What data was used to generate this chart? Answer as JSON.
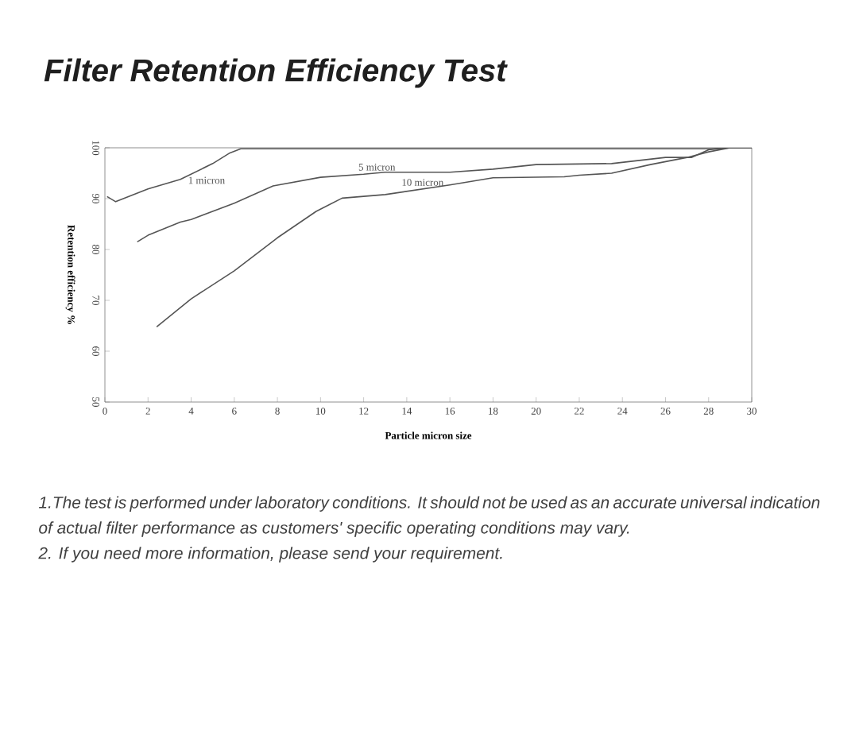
{
  "chart_data": {
    "type": "line",
    "title": "Filter Retention Efficiency Test",
    "xlabel": "Particle micron size",
    "ylabel": "Retention efficiency %",
    "xlim": [
      0,
      30
    ],
    "xticks": [
      0,
      2,
      4,
      6,
      8,
      10,
      12,
      14,
      16,
      18,
      20,
      22,
      24,
      26,
      28,
      30
    ],
    "ylim": [
      50,
      100
    ],
    "yticks": [
      50,
      60,
      70,
      80,
      90,
      100
    ],
    "grid": false,
    "legend": false,
    "marker": "none",
    "line_style": "solid",
    "series": [
      {
        "name": "1 micron",
        "color": "#555555",
        "x": [
          0.1,
          0.5,
          2,
          3.5,
          5,
          5.8,
          6.3,
          10,
          20,
          28,
          29,
          30
        ],
        "values": [
          90.4,
          89.4,
          91.9,
          93.8,
          96.9,
          99,
          99.8,
          99.8,
          99.8,
          99.8,
          100,
          100
        ]
      },
      {
        "name": "5 micron",
        "color": "#555555",
        "x": [
          1.5,
          2,
          3.5,
          4,
          6,
          7.8,
          10,
          12,
          13,
          16,
          18,
          20,
          23.5,
          26,
          27.2,
          28,
          29,
          30
        ],
        "values": [
          81.5,
          82.8,
          85.4,
          85.9,
          89.1,
          92.5,
          94.2,
          94.8,
          95.2,
          95.2,
          95.8,
          96.7,
          96.9,
          98.1,
          98.1,
          99.6,
          100,
          100
        ]
      },
      {
        "name": "10 micron",
        "color": "#555555",
        "x": [
          2.4,
          4,
          6,
          8,
          9.8,
          11,
          13,
          16,
          18,
          21.3,
          22,
          23.5,
          25.3,
          27,
          28,
          29,
          30
        ],
        "values": [
          64.8,
          70.3,
          75.8,
          82.3,
          87.5,
          90.1,
          90.8,
          92.7,
          94.1,
          94.3,
          94.6,
          95,
          96.7,
          98.1,
          99.2,
          100,
          100
        ]
      }
    ],
    "annotations": [
      "1.The test is performed under laboratory conditions. It should not be used as an accurate universal indication of actual filter performance as customers' specific operating conditions may vary.",
      "2. If you need more information, please send your requirement."
    ]
  }
}
